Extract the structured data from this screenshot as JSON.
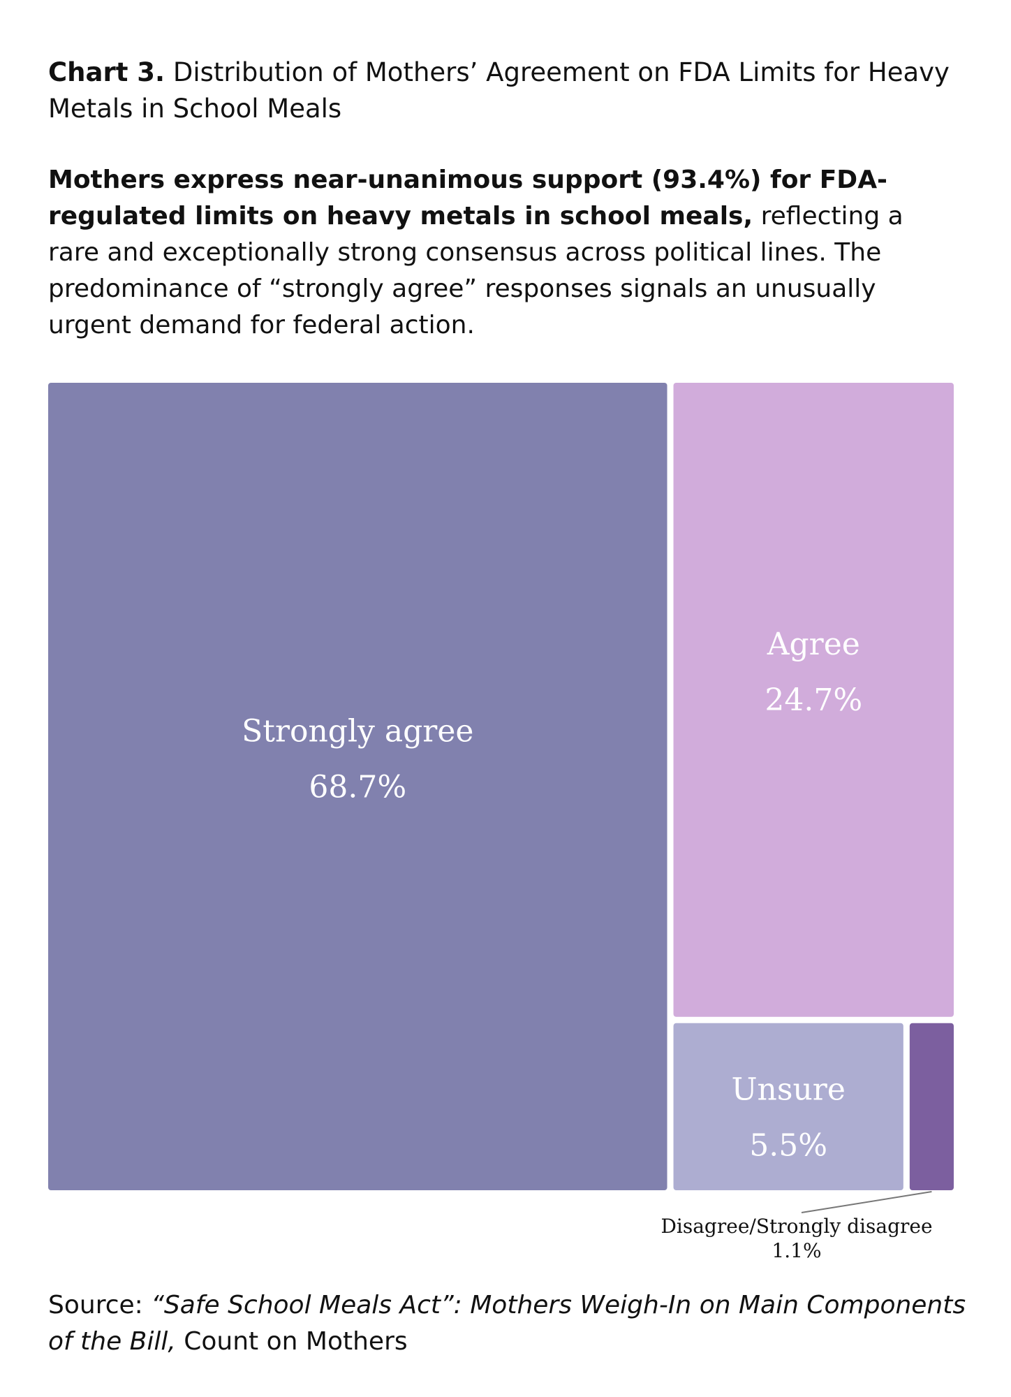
{
  "title": {
    "lead": "Chart 3.",
    "text": "Distribution of Mothers’ Agreement on FDA Limits for Heavy Metals in School Meals"
  },
  "description": {
    "bold": "Mothers express near-unanimous support (93.4%) for FDA-regulated limits on heavy metals in school meals,",
    "rest": "reflecting a rare and exceptionally strong consensus across political lines. The predominance of “strongly agree” responses signals an unusually urgent demand for federal action."
  },
  "chart_data": {
    "type": "treemap",
    "title": "",
    "categories": [
      "Strongly agree",
      "Agree",
      "Unsure",
      "Disagree/Strongly disagree"
    ],
    "values": [
      68.7,
      24.7,
      5.5,
      1.1
    ],
    "value_labels": [
      "68.7%",
      "24.7%",
      "5.5%",
      "1.1%"
    ],
    "unit": "%",
    "colors": [
      "#8181ae",
      "#d1acdb",
      "#adadd1",
      "#7c5f9f"
    ],
    "label_placement": [
      "inside",
      "inside",
      "inside",
      "callout-below"
    ]
  },
  "source": {
    "prefix": "Source:",
    "italic": "“Safe School Meals Act”: Mothers Weigh-In on Main Components of the Bill,",
    "suffix": "Count on Mothers"
  }
}
